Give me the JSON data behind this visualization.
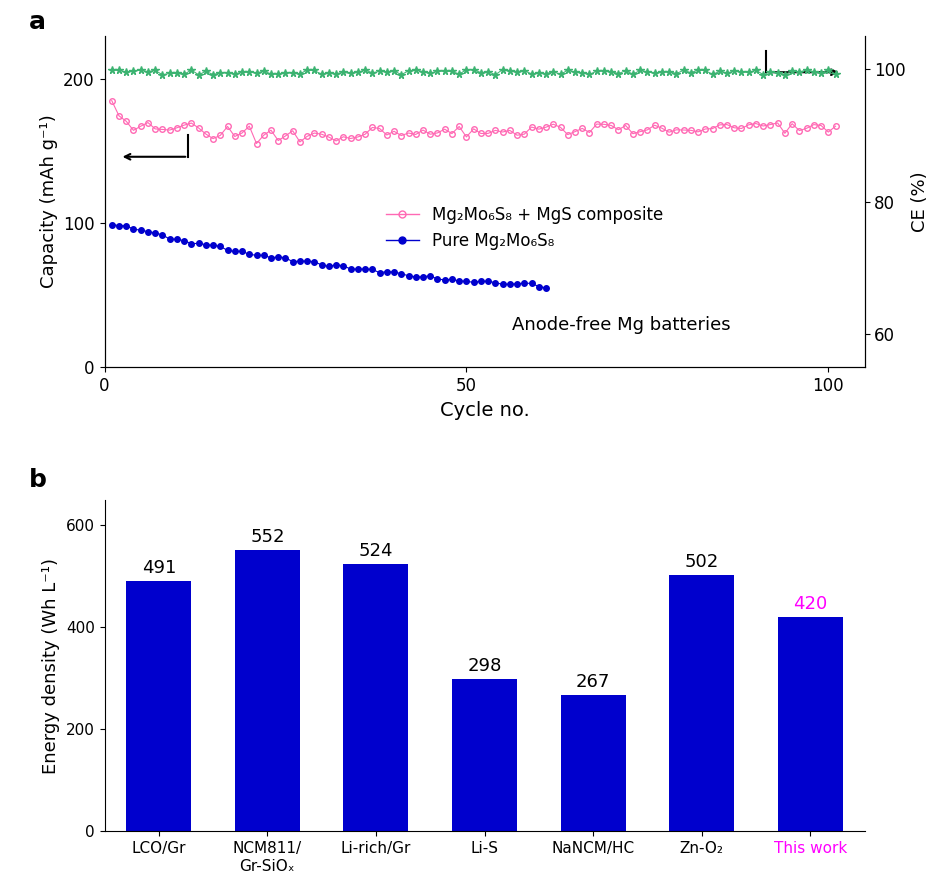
{
  "panel_a": {
    "title_label": "a",
    "xlabel": "Cycle no.",
    "ylabel_left": "Capacity (mAh g⁻¹)",
    "ylabel_right": "CE (%)",
    "xlim": [
      0,
      105
    ],
    "ylim_left": [
      0,
      230
    ],
    "ylim_right": [
      55,
      105
    ],
    "yticks_left": [
      0,
      100,
      200
    ],
    "yticks_right": [
      60,
      80,
      100
    ],
    "xticks": [
      0,
      50,
      100
    ],
    "annotation": "Anode-free Mg batteries",
    "legend": {
      "pink_label": "Mg₂Mo₆S₈ + MgS composite",
      "blue_label": "Pure Mg₂Mo₆S₈"
    },
    "pink_color": "#FF69B4",
    "blue_color": "#0000CD",
    "green_color": "#3CB371",
    "n_cycles": 100
  },
  "panel_b": {
    "title_label": "b",
    "ylabel": "Energy density (Wh L⁻¹)",
    "ylim": [
      0,
      650
    ],
    "yticks": [
      0,
      200,
      400,
      600
    ],
    "categories": [
      "LCO/Gr",
      "NCM811/\nGr-SiOₓ",
      "Li-rich/Gr",
      "Li-S",
      "NaNCM/HC",
      "Zn-O₂",
      "This work"
    ],
    "values": [
      491,
      552,
      524,
      298,
      267,
      502,
      420
    ],
    "bar_color": "#0000CD",
    "last_bar_label_color": "#FF00FF",
    "bar_label_color": "#000000"
  }
}
